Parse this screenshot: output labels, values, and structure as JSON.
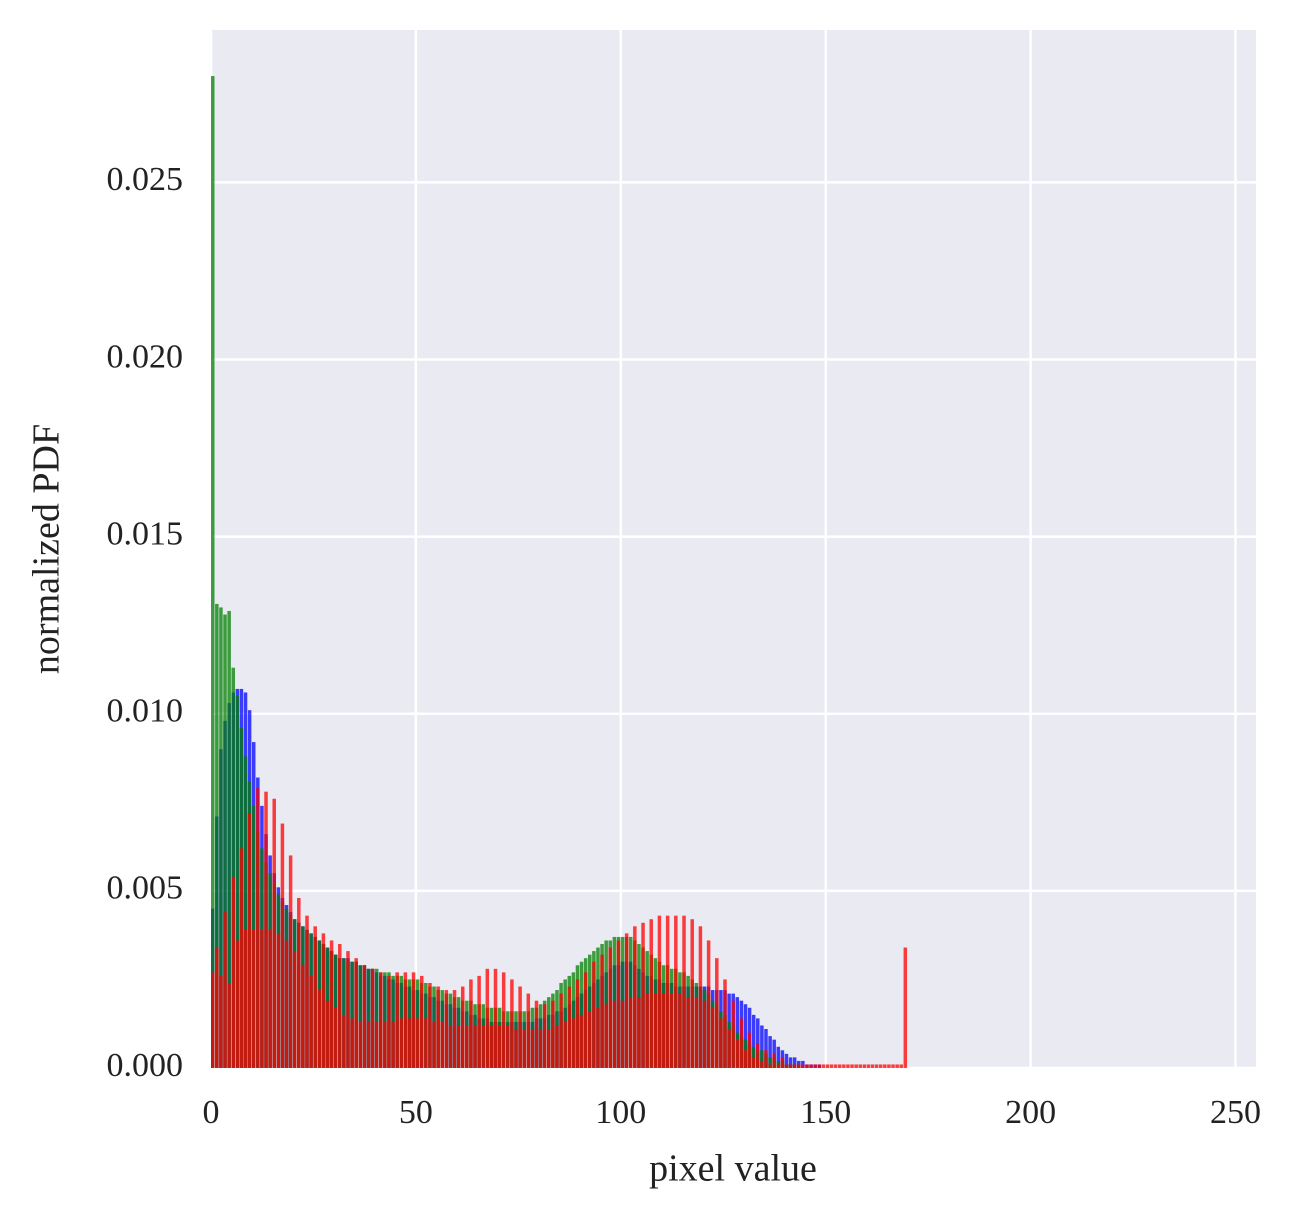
{
  "chart_data": {
    "type": "histogram",
    "x_label": "pixel value",
    "y_label": "normalized PDF",
    "bins": [
      0,
      1,
      2,
      3,
      4,
      5,
      6,
      7,
      8,
      9,
      10,
      11,
      12,
      13,
      14,
      15,
      16,
      17,
      18,
      19,
      20,
      21,
      22,
      23,
      24,
      25,
      26,
      27,
      28,
      29,
      30,
      31,
      32,
      33,
      34,
      35,
      36,
      37,
      38,
      39,
      40,
      41,
      42,
      43,
      44,
      45,
      46,
      47,
      48,
      49,
      50,
      51,
      52,
      53,
      54,
      55,
      56,
      57,
      58,
      59,
      60,
      61,
      62,
      63,
      64,
      65,
      66,
      67,
      68,
      69,
      70,
      71,
      72,
      73,
      74,
      75,
      76,
      77,
      78,
      79,
      80,
      81,
      82,
      83,
      84,
      85,
      86,
      87,
      88,
      89,
      90,
      91,
      92,
      93,
      94,
      95,
      96,
      97,
      98,
      99,
      100,
      101,
      102,
      103,
      104,
      105,
      106,
      107,
      108,
      109,
      110,
      111,
      112,
      113,
      114,
      115,
      116,
      117,
      118,
      119,
      120,
      121,
      122,
      123,
      124,
      125,
      126,
      127,
      128,
      129,
      130,
      131,
      132,
      133,
      134,
      135,
      136,
      137,
      138,
      139,
      140,
      141,
      142,
      143,
      144,
      145,
      146,
      147,
      148,
      149,
      150,
      151,
      152,
      153,
      154,
      155,
      156,
      157,
      158,
      159,
      160,
      161,
      162,
      163,
      164,
      165,
      166,
      167,
      168,
      169,
      170
    ],
    "alpha": 0.75,
    "series": [
      {
        "color": "#0000ff",
        "values": [
          0.0045,
          0.0071,
          0.009,
          0.0098,
          0.0103,
          0.0106,
          0.0107,
          0.0107,
          0.0106,
          0.0101,
          0.0092,
          0.0082,
          0.0074,
          0.0066,
          0.006,
          0.0055,
          0.0051,
          0.0048,
          0.0046,
          0.0044,
          0.0042,
          0.0041,
          0.004,
          0.0039,
          0.0038,
          0.0037,
          0.0036,
          0.0035,
          0.0034,
          0.0033,
          0.0032,
          0.0031,
          0.0031,
          0.0031,
          0.003,
          0.003,
          0.0029,
          0.0029,
          0.0028,
          0.0028,
          0.0027,
          0.0026,
          0.0026,
          0.0025,
          0.0025,
          0.0024,
          0.0024,
          0.0023,
          0.0023,
          0.0022,
          0.0022,
          0.0021,
          0.0021,
          0.002,
          0.002,
          0.0019,
          0.0019,
          0.0018,
          0.0018,
          0.0017,
          0.0017,
          0.0016,
          0.0016,
          0.0015,
          0.0015,
          0.0014,
          0.0014,
          0.0014,
          0.0013,
          0.0013,
          0.0013,
          0.0013,
          0.0013,
          0.0013,
          0.0013,
          0.0013,
          0.0013,
          0.0013,
          0.0013,
          0.0014,
          0.0014,
          0.0014,
          0.0015,
          0.0015,
          0.0016,
          0.0016,
          0.0017,
          0.0018,
          0.0019,
          0.002,
          0.0021,
          0.0022,
          0.0023,
          0.0024,
          0.0025,
          0.0026,
          0.0027,
          0.0028,
          0.0029,
          0.0029,
          0.003,
          0.003,
          0.003,
          0.0029,
          0.0028,
          0.0027,
          0.0026,
          0.0026,
          0.0025,
          0.0025,
          0.0024,
          0.0024,
          0.0024,
          0.0023,
          0.0023,
          0.0023,
          0.0023,
          0.0023,
          0.0023,
          0.0023,
          0.0023,
          0.0023,
          0.0022,
          0.0022,
          0.0022,
          0.0022,
          0.0021,
          0.0021,
          0.002,
          0.0019,
          0.0018,
          0.0017,
          0.0015,
          0.0014,
          0.0012,
          0.0011,
          0.0009,
          0.0008,
          0.0006,
          0.0005,
          0.0004,
          0.0003,
          0.0003,
          0.0002,
          0.0002,
          0.0001,
          0.0001,
          0.0001,
          0.0001,
          0,
          0,
          0,
          0,
          0,
          0,
          0,
          0,
          0,
          0,
          0,
          0,
          0,
          0,
          0,
          0,
          0,
          0,
          0,
          0,
          0
        ]
      },
      {
        "color": "#008000",
        "values": [
          0.028,
          0.0131,
          0.013,
          0.0128,
          0.0129,
          0.0113,
          0.0105,
          0.0096,
          0.0088,
          0.0081,
          0.0074,
          0.0067,
          0.0062,
          0.0058,
          0.0055,
          0.0052,
          0.0049,
          0.0047,
          0.0045,
          0.0043,
          0.0042,
          0.0041,
          0.004,
          0.0039,
          0.0038,
          0.0037,
          0.0036,
          0.0035,
          0.0034,
          0.0033,
          0.0032,
          0.0031,
          0.0031,
          0.003,
          0.003,
          0.003,
          0.0029,
          0.0029,
          0.0028,
          0.0028,
          0.0028,
          0.0027,
          0.0027,
          0.0027,
          0.0026,
          0.0026,
          0.0026,
          0.0025,
          0.0025,
          0.0025,
          0.0025,
          0.0024,
          0.0024,
          0.0023,
          0.0023,
          0.0022,
          0.0022,
          0.0021,
          0.0021,
          0.002,
          0.002,
          0.0019,
          0.0019,
          0.0019,
          0.0018,
          0.0018,
          0.0018,
          0.0017,
          0.0017,
          0.0017,
          0.0017,
          0.0016,
          0.0016,
          0.0016,
          0.0016,
          0.0016,
          0.0016,
          0.0016,
          0.0017,
          0.0017,
          0.0018,
          0.0019,
          0.002,
          0.0021,
          0.0022,
          0.0024,
          0.0025,
          0.0026,
          0.0027,
          0.0029,
          0.003,
          0.0031,
          0.0032,
          0.0033,
          0.0034,
          0.0035,
          0.0036,
          0.0036,
          0.0037,
          0.0037,
          0.0037,
          0.0037,
          0.0037,
          0.0036,
          0.0035,
          0.0034,
          0.0033,
          0.0032,
          0.0031,
          0.003,
          0.0029,
          0.0029,
          0.0028,
          0.0028,
          0.0027,
          0.0027,
          0.0026,
          0.0025,
          0.0024,
          0.0023,
          0.0022,
          0.0021,
          0.0019,
          0.0018,
          0.0016,
          0.0015,
          0.0013,
          0.0012,
          0.001,
          0.0009,
          0.0008,
          0.0007,
          0.0006,
          0.0005,
          0.0005,
          0.0004,
          0.0003,
          0.0003,
          0.0002,
          0.0002,
          0.0001,
          0.0001,
          0.0001,
          0.0001,
          0,
          0,
          0,
          0,
          0,
          0,
          0,
          0,
          0,
          0,
          0,
          0,
          0,
          0,
          0,
          0,
          0,
          0,
          0,
          0,
          0,
          0,
          0,
          0,
          0,
          0
        ]
      },
      {
        "color": "#ff0000",
        "values": [
          0.0027,
          0.0034,
          0.0026,
          0.0044,
          0.0024,
          0.0054,
          0.0036,
          0.0062,
          0.0039,
          0.0072,
          0.0039,
          0.0079,
          0.0039,
          0.0078,
          0.0039,
          0.0076,
          0.0038,
          0.0069,
          0.0036,
          0.006,
          0.0033,
          0.0048,
          0.0029,
          0.0043,
          0.0026,
          0.004,
          0.0022,
          0.0038,
          0.0019,
          0.0036,
          0.0017,
          0.0035,
          0.0015,
          0.0033,
          0.0014,
          0.0031,
          0.0013,
          0.0029,
          0.0013,
          0.0028,
          0.0013,
          0.0027,
          0.0013,
          0.0026,
          0.0013,
          0.0027,
          0.0014,
          0.0027,
          0.0014,
          0.0027,
          0.0014,
          0.0026,
          0.0014,
          0.0024,
          0.0013,
          0.0023,
          0.0013,
          0.0022,
          0.0012,
          0.0022,
          0.0012,
          0.0023,
          0.0012,
          0.0025,
          0.0012,
          0.0026,
          0.0012,
          0.0028,
          0.0012,
          0.0028,
          0.0012,
          0.0027,
          0.0012,
          0.0025,
          0.0011,
          0.0023,
          0.0011,
          0.0021,
          0.0011,
          0.0019,
          0.0011,
          0.0018,
          0.0011,
          0.0019,
          0.0012,
          0.0021,
          0.0013,
          0.0023,
          0.0014,
          0.0025,
          0.0015,
          0.0027,
          0.0016,
          0.003,
          0.0017,
          0.0032,
          0.0018,
          0.0034,
          0.0019,
          0.0036,
          0.0019,
          0.0038,
          0.002,
          0.004,
          0.002,
          0.0041,
          0.0021,
          0.0042,
          0.0021,
          0.0043,
          0.0021,
          0.0043,
          0.0021,
          0.0043,
          0.0021,
          0.0043,
          0.002,
          0.0042,
          0.002,
          0.004,
          0.0019,
          0.0036,
          0.0017,
          0.0031,
          0.0014,
          0.0025,
          0.0011,
          0.0019,
          0.0008,
          0.0014,
          0.0005,
          0.001,
          0.0003,
          0.0007,
          0.0002,
          0.0005,
          0.0001,
          0.0004,
          0.0001,
          0.0003,
          0.0001,
          0.0001,
          0.0001,
          0.0001,
          0.0001,
          0.0001,
          0.0001,
          0.0001,
          0.0001,
          0.0001,
          0.0001,
          0.0001,
          0.0001,
          0.0001,
          0.0001,
          0.0001,
          0.0001,
          0.0001,
          0.0001,
          0.0001,
          0.0001,
          0.0001,
          0.0001,
          0.0001,
          0.0001,
          0.0001,
          0.0001,
          0.0001,
          0.0001,
          0.0034
        ]
      }
    ],
    "xlim": [
      0,
      255
    ],
    "ylim": [
      0,
      0.0293
    ],
    "xticks": [
      0,
      50,
      100,
      150,
      200,
      250
    ],
    "yticks": [
      {
        "value": 0,
        "label": "0.000"
      },
      {
        "value": 0.005,
        "label": "0.005"
      },
      {
        "value": 0.01,
        "label": "0.010"
      },
      {
        "value": 0.015,
        "label": "0.015"
      },
      {
        "value": 0.02,
        "label": "0.020"
      },
      {
        "value": 0.025,
        "label": "0.025"
      }
    ],
    "grid": true
  }
}
